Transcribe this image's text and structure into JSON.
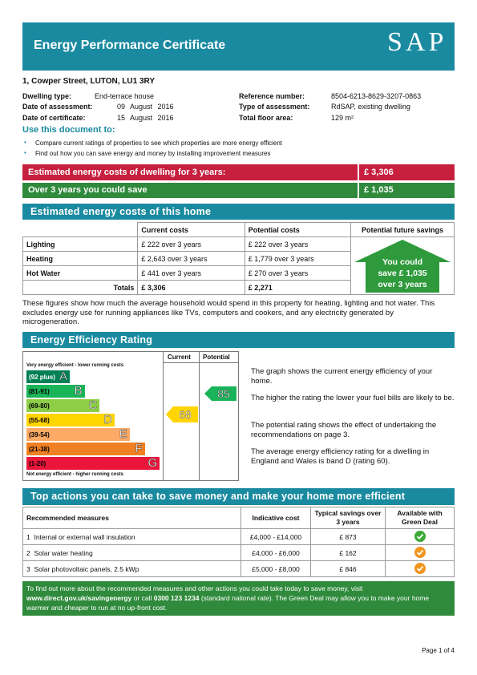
{
  "header": {
    "title": "Energy Performance Certificate",
    "logo": "SAP"
  },
  "address": "1, Cowper Street, LUTON, LU1 3RY",
  "details": {
    "left": [
      [
        "Dwelling type:",
        "End-terrace house"
      ],
      [
        "Date of assessment:",
        "09 August 2016"
      ],
      [
        "Date of certificate:",
        "15 August 2016"
      ]
    ],
    "right": [
      [
        "Reference number:",
        "8504-6213-8629-3207-0863"
      ],
      [
        "Type of assessment:",
        "RdSAP, existing dwelling"
      ],
      [
        "Total floor area:",
        "129 m²"
      ]
    ]
  },
  "use_document": {
    "heading": "Use this document to:",
    "items": [
      "Compare current ratings of properties to see which properties are more energy efficient",
      "Find out how you can save energy and money by installing improvement measures"
    ]
  },
  "summary": [
    {
      "label": "Estimated energy costs of dwelling for 3 years:",
      "value": "£ 3,306"
    },
    {
      "label": "Over 3 years you could save",
      "value": "£ 1,035"
    }
  ],
  "estimated_costs": {
    "title": "Estimated energy costs of this home",
    "headers": [
      "Current costs",
      "Potential costs",
      "Potential future savings"
    ],
    "rows": [
      [
        "Lighting",
        "£ 222 over 3 years",
        "£ 222 over 3 years"
      ],
      [
        "Heating",
        "£ 2,643 over 3 years",
        "£ 1,779 over 3 years"
      ],
      [
        "Hot Water",
        "£ 441 over 3 years",
        "£ 270 over 3 years"
      ]
    ],
    "totals": [
      "Totals",
      "£ 3,306",
      "£ 2,271"
    ],
    "savings_arrow": [
      "You could",
      "save £ 1,035",
      "over 3 years"
    ],
    "note": "These figures show how much the average household would spend in this property for heating, lighting and hot water. This excludes energy use for running appliances like TVs, computers and cookers, and any electricity generated by microgeneration."
  },
  "rating": {
    "title": "Energy Efficiency Rating",
    "columns": [
      "Current",
      "Potential"
    ],
    "top_label": "Very energy efficient - lower running costs",
    "bottom_label": "Not energy efficient - higher running costs",
    "bands": [
      {
        "range": "(92 plus)",
        "letter": "A",
        "color": "#008054"
      },
      {
        "range": "(81-91)",
        "letter": "B",
        "color": "#19b459"
      },
      {
        "range": "(69-80)",
        "letter": "C",
        "color": "#8dce46"
      },
      {
        "range": "(55-68)",
        "letter": "D",
        "color": "#ffd500"
      },
      {
        "range": "(39-54)",
        "letter": "E",
        "color": "#fcaa65"
      },
      {
        "range": "(21-38)",
        "letter": "F",
        "color": "#ef8023"
      },
      {
        "range": "(1-20)",
        "letter": "G",
        "color": "#e9153b"
      }
    ],
    "current": 68,
    "potential": 85,
    "paragraphs": [
      "The graph shows the current energy efficiency of your home.",
      "The higher the rating the lower your fuel bills are likely to be.",
      "The potential rating shows the effect of undertaking the recommendations on page 3.",
      "The average energy efficiency rating for a dwelling in England and Wales is band D (rating 60)."
    ]
  },
  "actions": {
    "title": "Top actions you can take to save money and make your home more efficient",
    "headers": [
      "Recommended measures",
      "Indicative cost",
      "Typical savings over 3 years",
      "Available with Green Deal"
    ],
    "rows": [
      [
        "1",
        "Internal or external wall insulation",
        "£4,000 - £14,000",
        "£ 873"
      ],
      [
        "2",
        "Solar water heating",
        "£4,000 - £6,000",
        "£ 162"
      ],
      [
        "3",
        "Solar photovoltaic panels, 2.5 kWp",
        "£5,000 - £8,000",
        "£ 846"
      ]
    ]
  },
  "footer": {
    "parts": [
      "To find out more about the recommended measures and other actions you could take today to save money, visit ",
      "www.direct.gov.uk/savingenergy",
      " or call ",
      "0300 123 1234",
      " (standard national rate). The Green Deal may allow you to make your home warmer and cheaper to run at no up-front cost."
    ],
    "page": "Page 1 of 4"
  }
}
